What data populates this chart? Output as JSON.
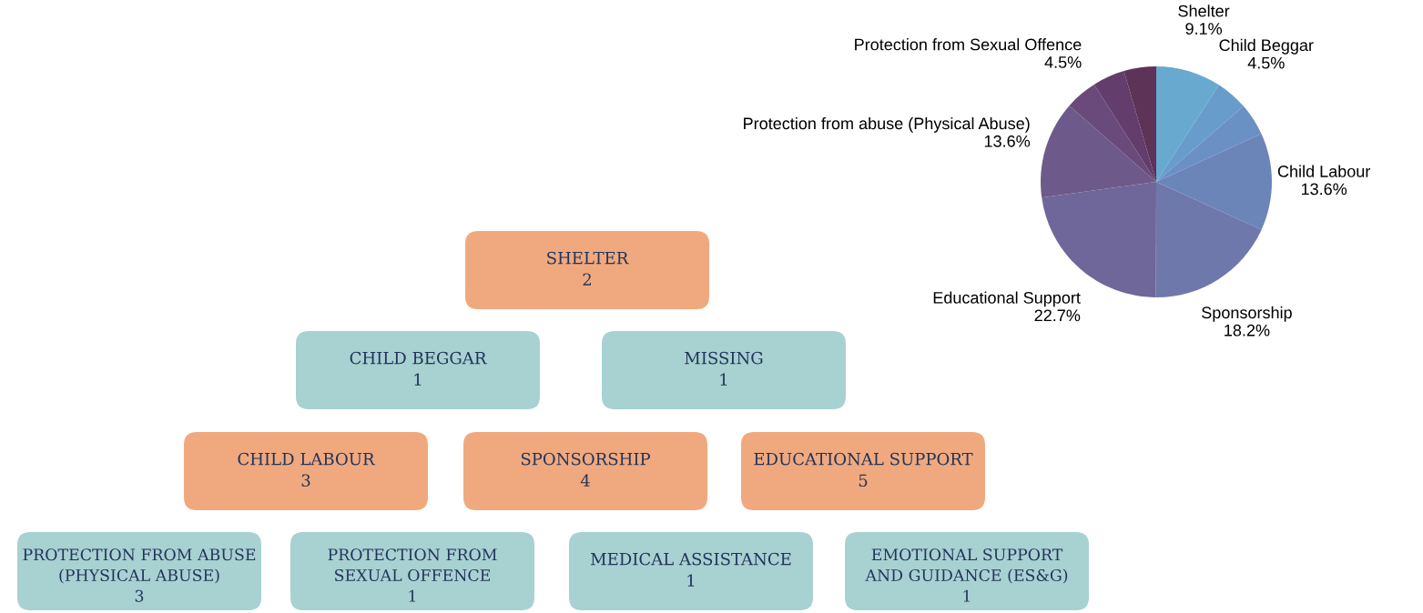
{
  "chart_data": [
    {
      "type": "pie",
      "categories": [
        "Shelter",
        "Child Beggar",
        null,
        "Child Labour",
        "Sponsorship",
        "Educational Support",
        "Protection from abuse (Physical Abuse)",
        "Protection from Sexual Offence",
        null,
        null
      ],
      "values": [
        9.1,
        4.5,
        4.5,
        13.6,
        18.2,
        22.7,
        13.6,
        4.5,
        4.5,
        4.5
      ],
      "value_labels": [
        "9.1%",
        "4.5%",
        null,
        "13.6%",
        "18.2%",
        "22.7%",
        "13.6%",
        "4.5%",
        null,
        null
      ],
      "colors": [
        "#68a9cf",
        "#689dcb",
        "#6a90c4",
        "#6b85b9",
        "#6e78ab",
        "#6f6799",
        "#6d5a8a",
        "#6a4a7a",
        "#633d6b",
        "#5e3358"
      ]
    },
    {
      "type": "other",
      "annotations": [
        "SHELTER\n2",
        "CHILD BEGGAR\n1",
        "MISSING\n1",
        "CHILD LABOUR\n3",
        "SPONSORSHIP\n4",
        "EDUCATIONAL SUPPORT\n5",
        "PROTECTION FROM ABUSE\n(PHYSICAL ABUSE)\n3",
        "PROTECTION FROM\nSEXUAL OFFENCE\n1",
        "MEDICAL ASSISTANCE\n1",
        "EMOTIONAL SUPPORT\nAND GUIDANCE (ES&G)\n1"
      ],
      "colors": [
        "#f0a97e",
        "#a8d1d1",
        "#a8d1d1",
        "#f0a97e",
        "#f0a97e",
        "#f0a97e",
        "#a8d1d1",
        "#a8d1d1",
        "#a8d1d1",
        "#a8d1d1"
      ]
    }
  ]
}
